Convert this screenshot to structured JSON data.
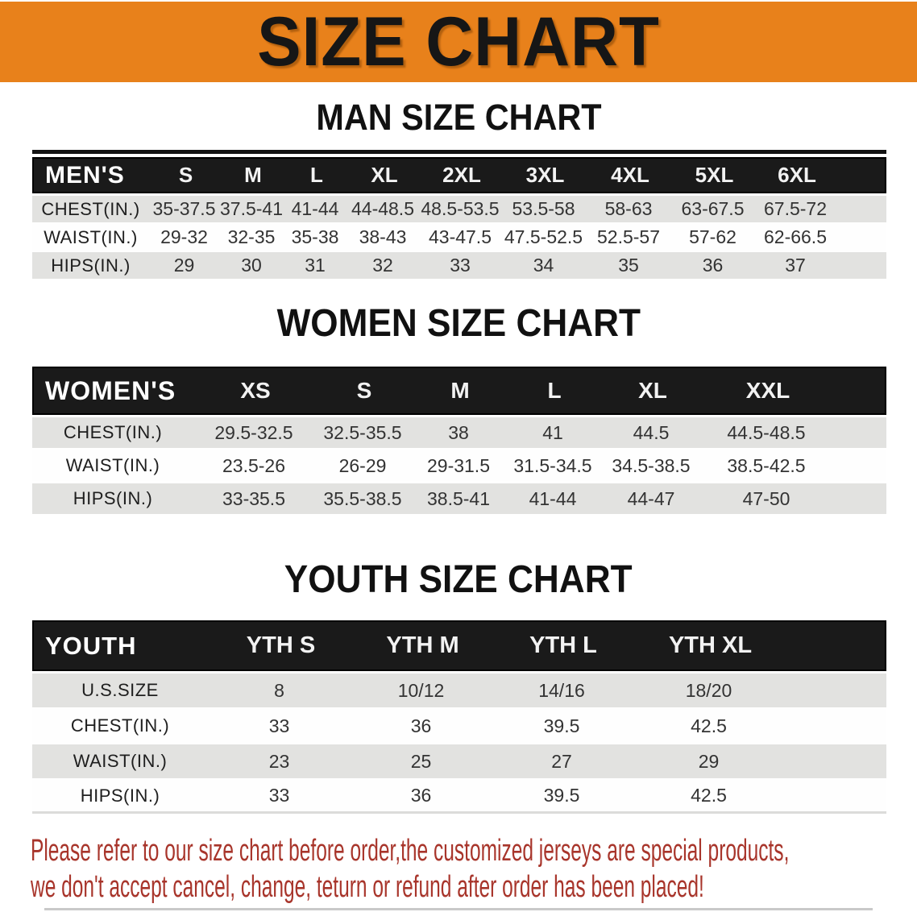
{
  "colors": {
    "banner_bg": "#E8811B",
    "header_bg": "#1A1A1A",
    "row_gray": "#E2E2E0",
    "disclaimer_red": "#A8352B"
  },
  "banner": {
    "title": "SIZE CHART"
  },
  "man": {
    "section_title": "MAN SIZE CHART",
    "table": {
      "header_label": "MEN'S",
      "columns": [
        "S",
        "M",
        "L",
        "XL",
        "2XL",
        "3XL",
        "4XL",
        "5XL",
        "6XL"
      ],
      "rows": [
        {
          "label": "CHEST(IN.)",
          "values": [
            "35-37.5",
            "37.5-41",
            "41-44",
            "44-48.5",
            "48.5-53.5",
            "53.5-58",
            "58-63",
            "63-67.5",
            "67.5-72"
          ]
        },
        {
          "label": "WAIST(IN.)",
          "values": [
            "29-32",
            "32-35",
            "35-38",
            "38-43",
            "43-47.5",
            "47.5-52.5",
            "52.5-57",
            "57-62",
            "62-66.5"
          ]
        },
        {
          "label": "HIPS(IN.)",
          "values": [
            "29",
            "30",
            "31",
            "32",
            "33",
            "34",
            "35",
            "36",
            "37"
          ]
        }
      ]
    }
  },
  "women": {
    "section_title": "WOMEN SIZE CHART",
    "table": {
      "header_label": "WOMEN'S",
      "columns": [
        "XS",
        "S",
        "M",
        "L",
        "XL",
        "XXL"
      ],
      "rows": [
        {
          "label": "CHEST(IN.)",
          "values": [
            "29.5-32.5",
            "32.5-35.5",
            "38",
            "41",
            "44.5",
            "44.5-48.5"
          ]
        },
        {
          "label": "WAIST(IN.)",
          "values": [
            "23.5-26",
            "26-29",
            "29-31.5",
            "31.5-34.5",
            "34.5-38.5",
            "38.5-42.5"
          ]
        },
        {
          "label": "HIPS(IN.)",
          "values": [
            "33-35.5",
            "35.5-38.5",
            "38.5-41",
            "41-44",
            "44-47",
            "47-50"
          ]
        }
      ]
    }
  },
  "youth": {
    "section_title": "YOUTH SIZE CHART",
    "table": {
      "header_label": "YOUTH",
      "columns": [
        "YTH S",
        "YTH M",
        "YTH L",
        "YTH XL"
      ],
      "rows": [
        {
          "label": "U.S.SIZE",
          "values": [
            "8",
            "10/12",
            "14/16",
            "18/20"
          ]
        },
        {
          "label": "CHEST(IN.)",
          "values": [
            "33",
            "36",
            "39.5",
            "42.5"
          ]
        },
        {
          "label": "WAIST(IN.)",
          "values": [
            "23",
            "25",
            "27",
            "29"
          ]
        },
        {
          "label": "HIPS(IN.)",
          "values": [
            "33",
            "36",
            "39.5",
            "42.5"
          ]
        }
      ]
    }
  },
  "disclaimer": {
    "line1": "Please refer to our size chart before order,the customized jerseys are special products,",
    "line2": "we don't accept cancel, change, teturn or refund after order has been placed!"
  }
}
